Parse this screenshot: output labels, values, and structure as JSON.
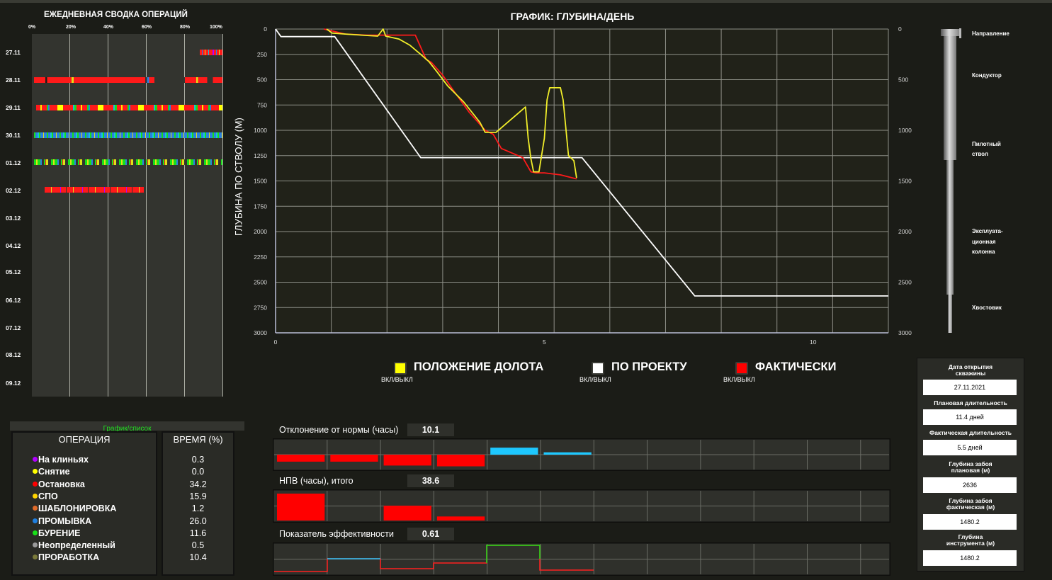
{
  "summary": {
    "title": "ЕЖЕДНЕВНАЯ СВОДКА ОПЕРАЦИЙ",
    "pct_ticks": [
      "0%",
      "20%",
      "40%",
      "60%",
      "80%",
      "100%"
    ],
    "dates": [
      "27.11",
      "28.11",
      "29.11",
      "30.11",
      "01.12",
      "02.12",
      "03.12",
      "04.12",
      "05.12",
      "06.12",
      "07.12",
      "08.12",
      "09.12"
    ],
    "toggle_label": "График/список"
  },
  "chart_data": {
    "type": "line",
    "title": "ГРАФИК: ГЛУБИНА/ДЕНЬ",
    "ylabel": "ГЛУБИНА ПО СТВОЛУ (М)",
    "xlabel": "",
    "xlim": [
      0,
      11.4
    ],
    "ylim": [
      3000,
      0
    ],
    "x_ticks": [
      "0",
      "5",
      "10"
    ],
    "y_ticks": [
      "0",
      "250",
      "500",
      "750",
      "1000",
      "1250",
      "1500",
      "1750",
      "2000",
      "2250",
      "2500",
      "2750",
      "3000"
    ],
    "y_ticks_right": [
      "0",
      "500",
      "1000",
      "1500",
      "2000",
      "2500",
      "3000"
    ],
    "grid": true,
    "series": [
      {
        "name": "ПО ПРОЕКТУ",
        "color": "#ffffff",
        "x": [
          0,
          0.1,
          1.1,
          2.7,
          5.7,
          7.8,
          11.4
        ],
        "y": [
          0,
          75,
          75,
          1270,
          1270,
          2636,
          2636
        ]
      },
      {
        "name": "ФАКТИЧЕСКИ",
        "color": "#ff1a1a",
        "x": [
          0.9,
          1.3,
          1.7,
          2.0,
          2.2,
          2.6,
          2.7,
          2.8,
          2.9,
          3.1,
          3.3,
          3.6,
          3.9,
          4.05,
          4.2,
          4.6,
          4.75,
          4.85,
          5.0,
          5.3,
          5.6
        ],
        "y": [
          0,
          50,
          60,
          60,
          60,
          60,
          180,
          300,
          330,
          450,
          600,
          820,
          1000,
          1040,
          1180,
          1270,
          1410,
          1420,
          1420,
          1440,
          1480
        ]
      },
      {
        "name": "ПОЛОЖЕНИЕ ДОЛОТА",
        "color": "#f2ef2a",
        "x": [
          0.95,
          1.05,
          1.3,
          1.6,
          1.9,
          2.0,
          2.05,
          2.3,
          2.5,
          2.7,
          2.85,
          3.0,
          3.2,
          3.5,
          3.8,
          3.9,
          4.1,
          4.65,
          4.7,
          4.75,
          4.8,
          4.9,
          5.0,
          5.05,
          5.1,
          5.3,
          5.35,
          5.45,
          5.55,
          5.6
        ],
        "y": [
          0,
          40,
          50,
          60,
          70,
          0,
          70,
          100,
          160,
          250,
          320,
          420,
          560,
          720,
          920,
          1020,
          1020,
          770,
          1080,
          1280,
          1410,
          1410,
          1080,
          700,
          580,
          580,
          700,
          1250,
          1300,
          1470
        ]
      }
    ]
  },
  "legend": [
    {
      "label": "ПОЛОЖЕНИЕ ДОЛОТА",
      "sub": "ВКЛ/ВЫКЛ",
      "color": "#ffff00"
    },
    {
      "label": "ПО ПРОЕКТУ",
      "sub": "ВКЛ/ВЫКЛ",
      "color": "#ffffff"
    },
    {
      "label": "ФАКТИЧЕСКИ",
      "sub": "ВКЛ/ВЫКЛ",
      "color": "#ff0000"
    }
  ],
  "well_schematic": {
    "sections": [
      "Направление",
      "Кондуктор",
      "Пилотный",
      "ствол",
      "Эксплуата-",
      "ционная",
      "колонна",
      "Хвостовик"
    ]
  },
  "operations": {
    "col_operation": "ОПЕРАЦИЯ",
    "col_time": "ВРЕМЯ (%)",
    "rows": [
      {
        "name": "На клиньях",
        "color": "#b000ff",
        "value": "0.3"
      },
      {
        "name": "Снятие",
        "color": "#ffff00",
        "value": "0.0"
      },
      {
        "name": "Остановка",
        "color": "#ff0000",
        "value": "34.2"
      },
      {
        "name": "СПО",
        "color": "#ffd400",
        "value": "15.9"
      },
      {
        "name": "ШАБЛОНИРОВКА",
        "color": "#e06b2a",
        "value": "1.2"
      },
      {
        "name": "ПРОМЫВКА",
        "color": "#1f7fe0",
        "value": "26.0"
      },
      {
        "name": "БУРЕНИЕ",
        "color": "#18e018",
        "value": "11.6"
      },
      {
        "name": "Неопределенный",
        "color": "#9a9a9a",
        "value": "0.5"
      },
      {
        "name": "ПРОРАБОТКА",
        "color": "#7a7a3a",
        "value": "10.4"
      }
    ]
  },
  "metrics": {
    "deviation": {
      "label": "Отклонение от нормы (часы)",
      "value": "10.1",
      "value_color": "#1ec8ff",
      "bars": [
        0.45,
        0.45,
        0.7,
        0.75,
        -0.45,
        -0.15
      ]
    },
    "npv": {
      "label": "НПВ (часы), итого",
      "value": "38.6",
      "value_color": "#ffffff",
      "bars": [
        1.0,
        0,
        0.55,
        0.15
      ]
    },
    "efficiency": {
      "label": "Показатель эффективности",
      "value": "0.61",
      "value_color": "#ff2020"
    }
  },
  "well_info": {
    "items": [
      {
        "label": "Дата открытия скважины",
        "value": "27.11.2021"
      },
      {
        "label": "Плановая длительность",
        "value": "11.4 дней"
      },
      {
        "label": "Фактическая длительность",
        "value": "5.5 дней"
      },
      {
        "label": "Глубина забоя плановая (м)",
        "value": "2636"
      },
      {
        "label": "Глубина забоя фактическая (м)",
        "value": "1480.2"
      },
      {
        "label": "Глубина инструмента (м)",
        "value": "1480.2"
      }
    ]
  }
}
